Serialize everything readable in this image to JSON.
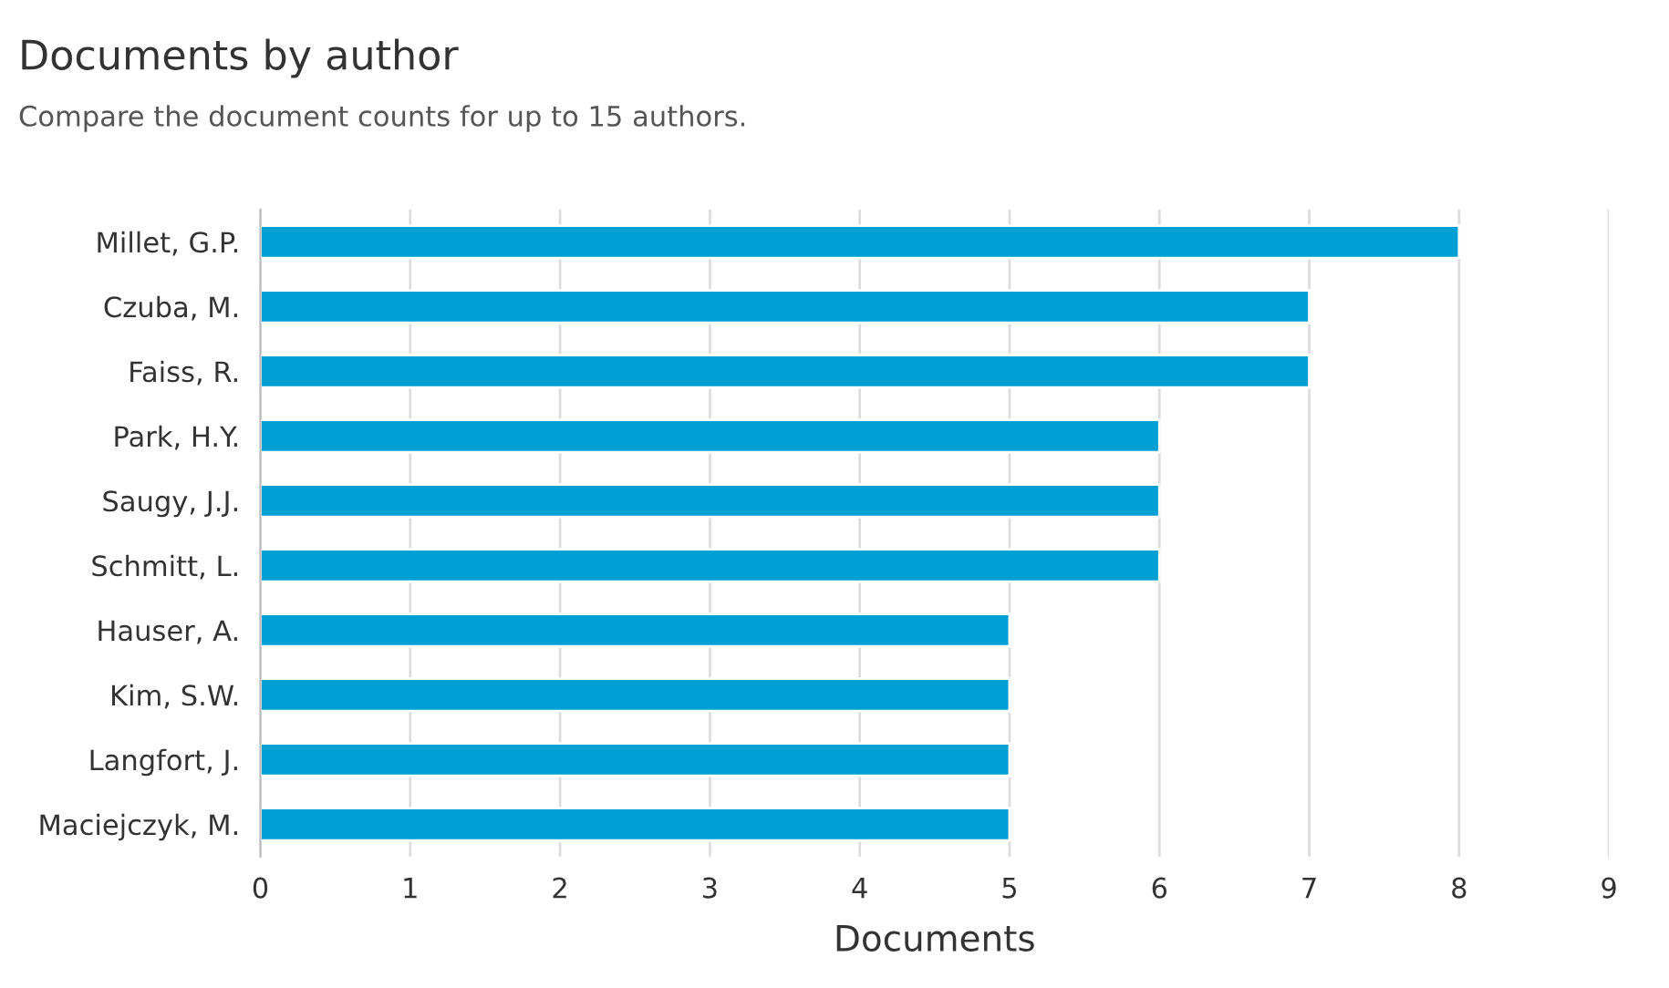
{
  "chart_data": {
    "type": "bar",
    "orientation": "horizontal",
    "title": "Documents by author",
    "subtitle": "Compare the document counts for up to 15 authors.",
    "xlabel": "Documents",
    "categories": [
      "Millet, G.P.",
      "Czuba, M.",
      "Faiss, R.",
      "Park, H.Y.",
      "Saugy, J.J.",
      "Schmitt, L.",
      "Hauser, A.",
      "Kim, S.W.",
      "Langfort, J.",
      "Maciejczyk, M."
    ],
    "values": [
      8,
      7,
      7,
      6,
      6,
      6,
      5,
      5,
      5,
      5
    ],
    "color": "#009fd4",
    "xlim": [
      0,
      9
    ],
    "xticks": [
      0,
      1,
      2,
      3,
      4,
      5,
      6,
      7,
      8,
      9
    ],
    "grid": "x",
    "legend": false
  }
}
